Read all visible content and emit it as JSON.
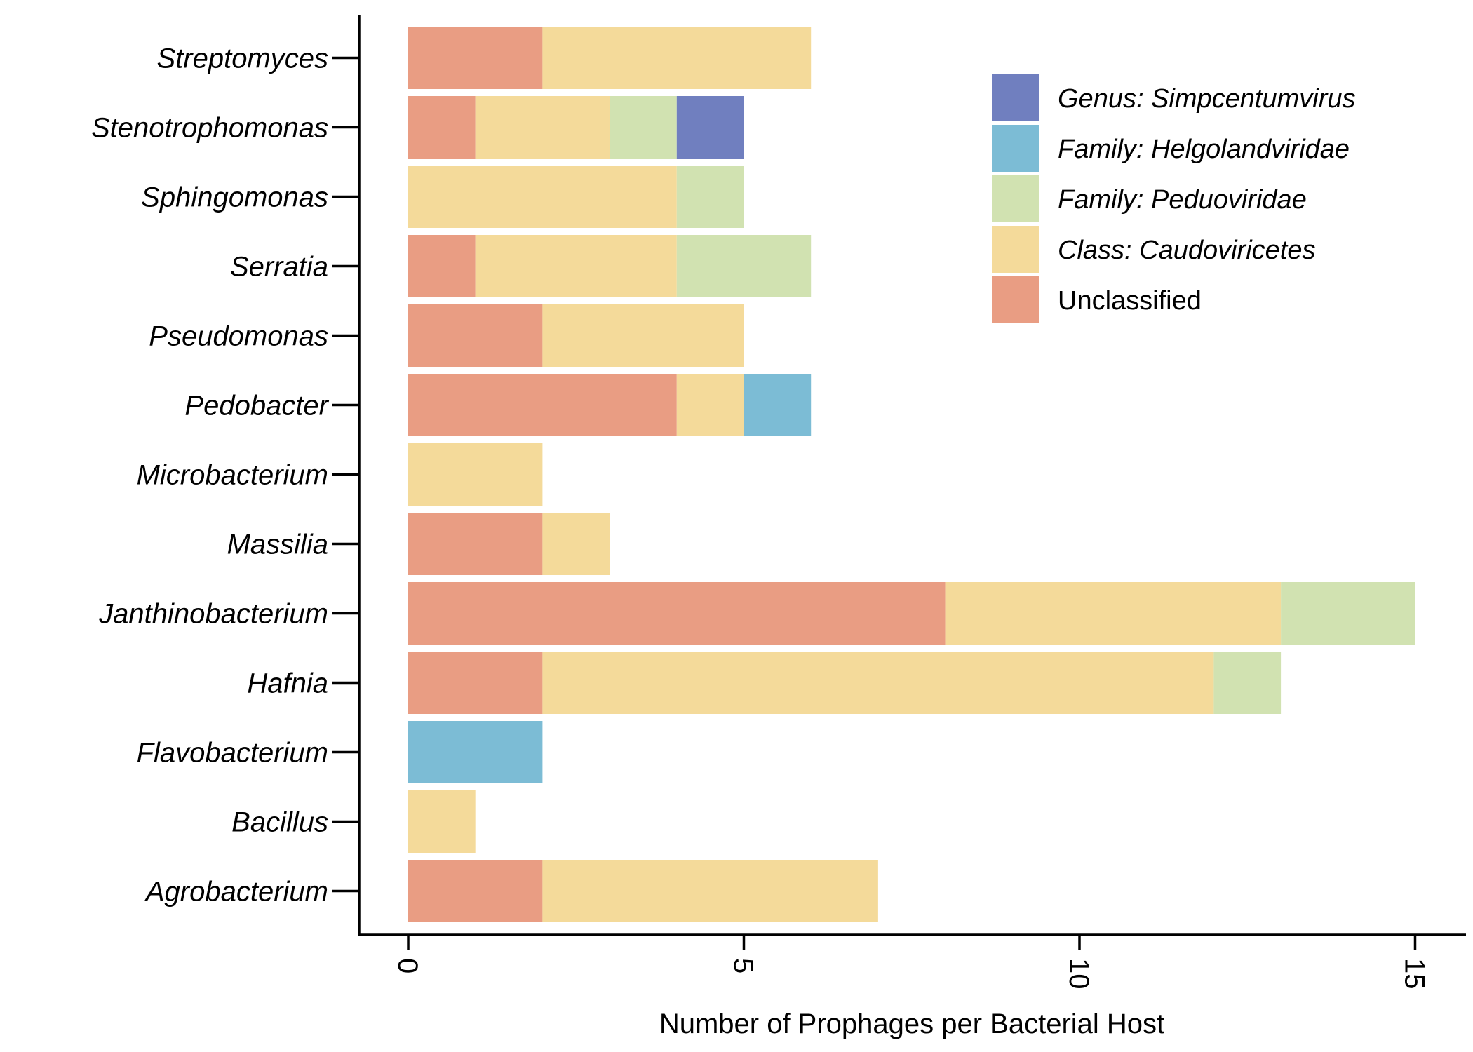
{
  "chart_data": {
    "type": "bar",
    "orientation": "horizontal",
    "stacked": true,
    "categories": [
      "Streptomyces",
      "Stenotrophomonas",
      "Sphingomonas",
      "Serratia",
      "Pseudomonas",
      "Pedobacter",
      "Microbacterium",
      "Massilia",
      "Janthinobacterium",
      "Hafnia",
      "Flavobacterium",
      "Bacillus",
      "Agrobacterium"
    ],
    "series": [
      {
        "name": "Unclassified",
        "color": "#E99D83",
        "italic": false,
        "values": [
          2,
          1,
          0,
          1,
          2,
          4,
          0,
          2,
          8,
          2,
          0,
          0,
          2
        ]
      },
      {
        "name": "Class: Caudoviricetes",
        "color": "#F4DA9A",
        "italic": true,
        "values": [
          4,
          2,
          4,
          3,
          3,
          1,
          2,
          1,
          5,
          10,
          0,
          1,
          5
        ]
      },
      {
        "name": "Family: Peduoviridae",
        "color": "#D1E2B1",
        "italic": true,
        "values": [
          0,
          1,
          1,
          2,
          0,
          0,
          0,
          0,
          2,
          1,
          0,
          0,
          0
        ]
      },
      {
        "name": "Family: Helgolandviridae",
        "color": "#7CBCD5",
        "italic": true,
        "values": [
          0,
          0,
          0,
          0,
          0,
          1,
          0,
          0,
          0,
          0,
          2,
          0,
          0
        ]
      },
      {
        "name": "Genus: Simpcentumvirus",
        "color": "#707FBF",
        "italic": true,
        "values": [
          0,
          1,
          0,
          0,
          0,
          0,
          0,
          0,
          0,
          0,
          0,
          0,
          0
        ]
      }
    ],
    "legend_order": [
      "Genus: Simpcentumvirus",
      "Family: Helgolandviridae",
      "Family: Peduoviridae",
      "Class: Caudoviricetes",
      "Unclassified"
    ],
    "xlabel": "Number of Prophages per Bacterial Host",
    "ylabel": "",
    "xlim": [
      0,
      15
    ],
    "xticks": [
      0,
      5,
      10,
      15
    ],
    "tick_label_rotation": 90,
    "grid": false,
    "legend_position": "top-right"
  }
}
